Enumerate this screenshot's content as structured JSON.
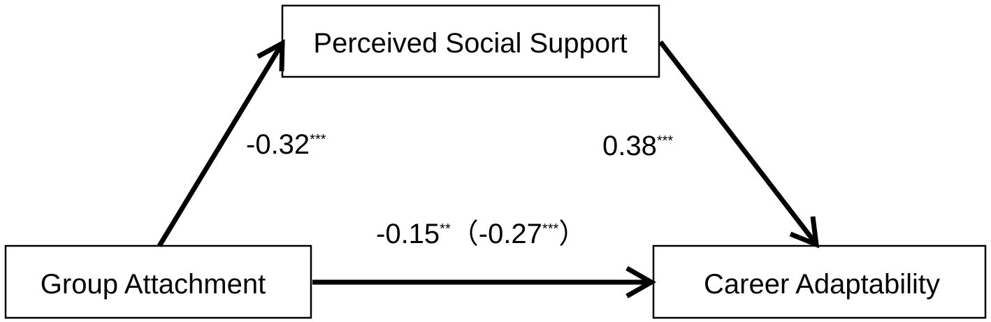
{
  "nodes": [
    {
      "label": "Perceived Social Support"
    },
    {
      "label": "Group Attachment"
    },
    {
      "label": "Career Adaptability"
    }
  ],
  "edges": [
    {
      "coefficient": "-0.32",
      "significance": "***"
    },
    {
      "coefficient": "0.38",
      "significance": "***"
    },
    {
      "coefficient": "-0.15",
      "significance": "**",
      "total_effect": {
        "open": "（",
        "coefficient": "-0.27",
        "significance": "***",
        "close": "）"
      }
    }
  ]
}
